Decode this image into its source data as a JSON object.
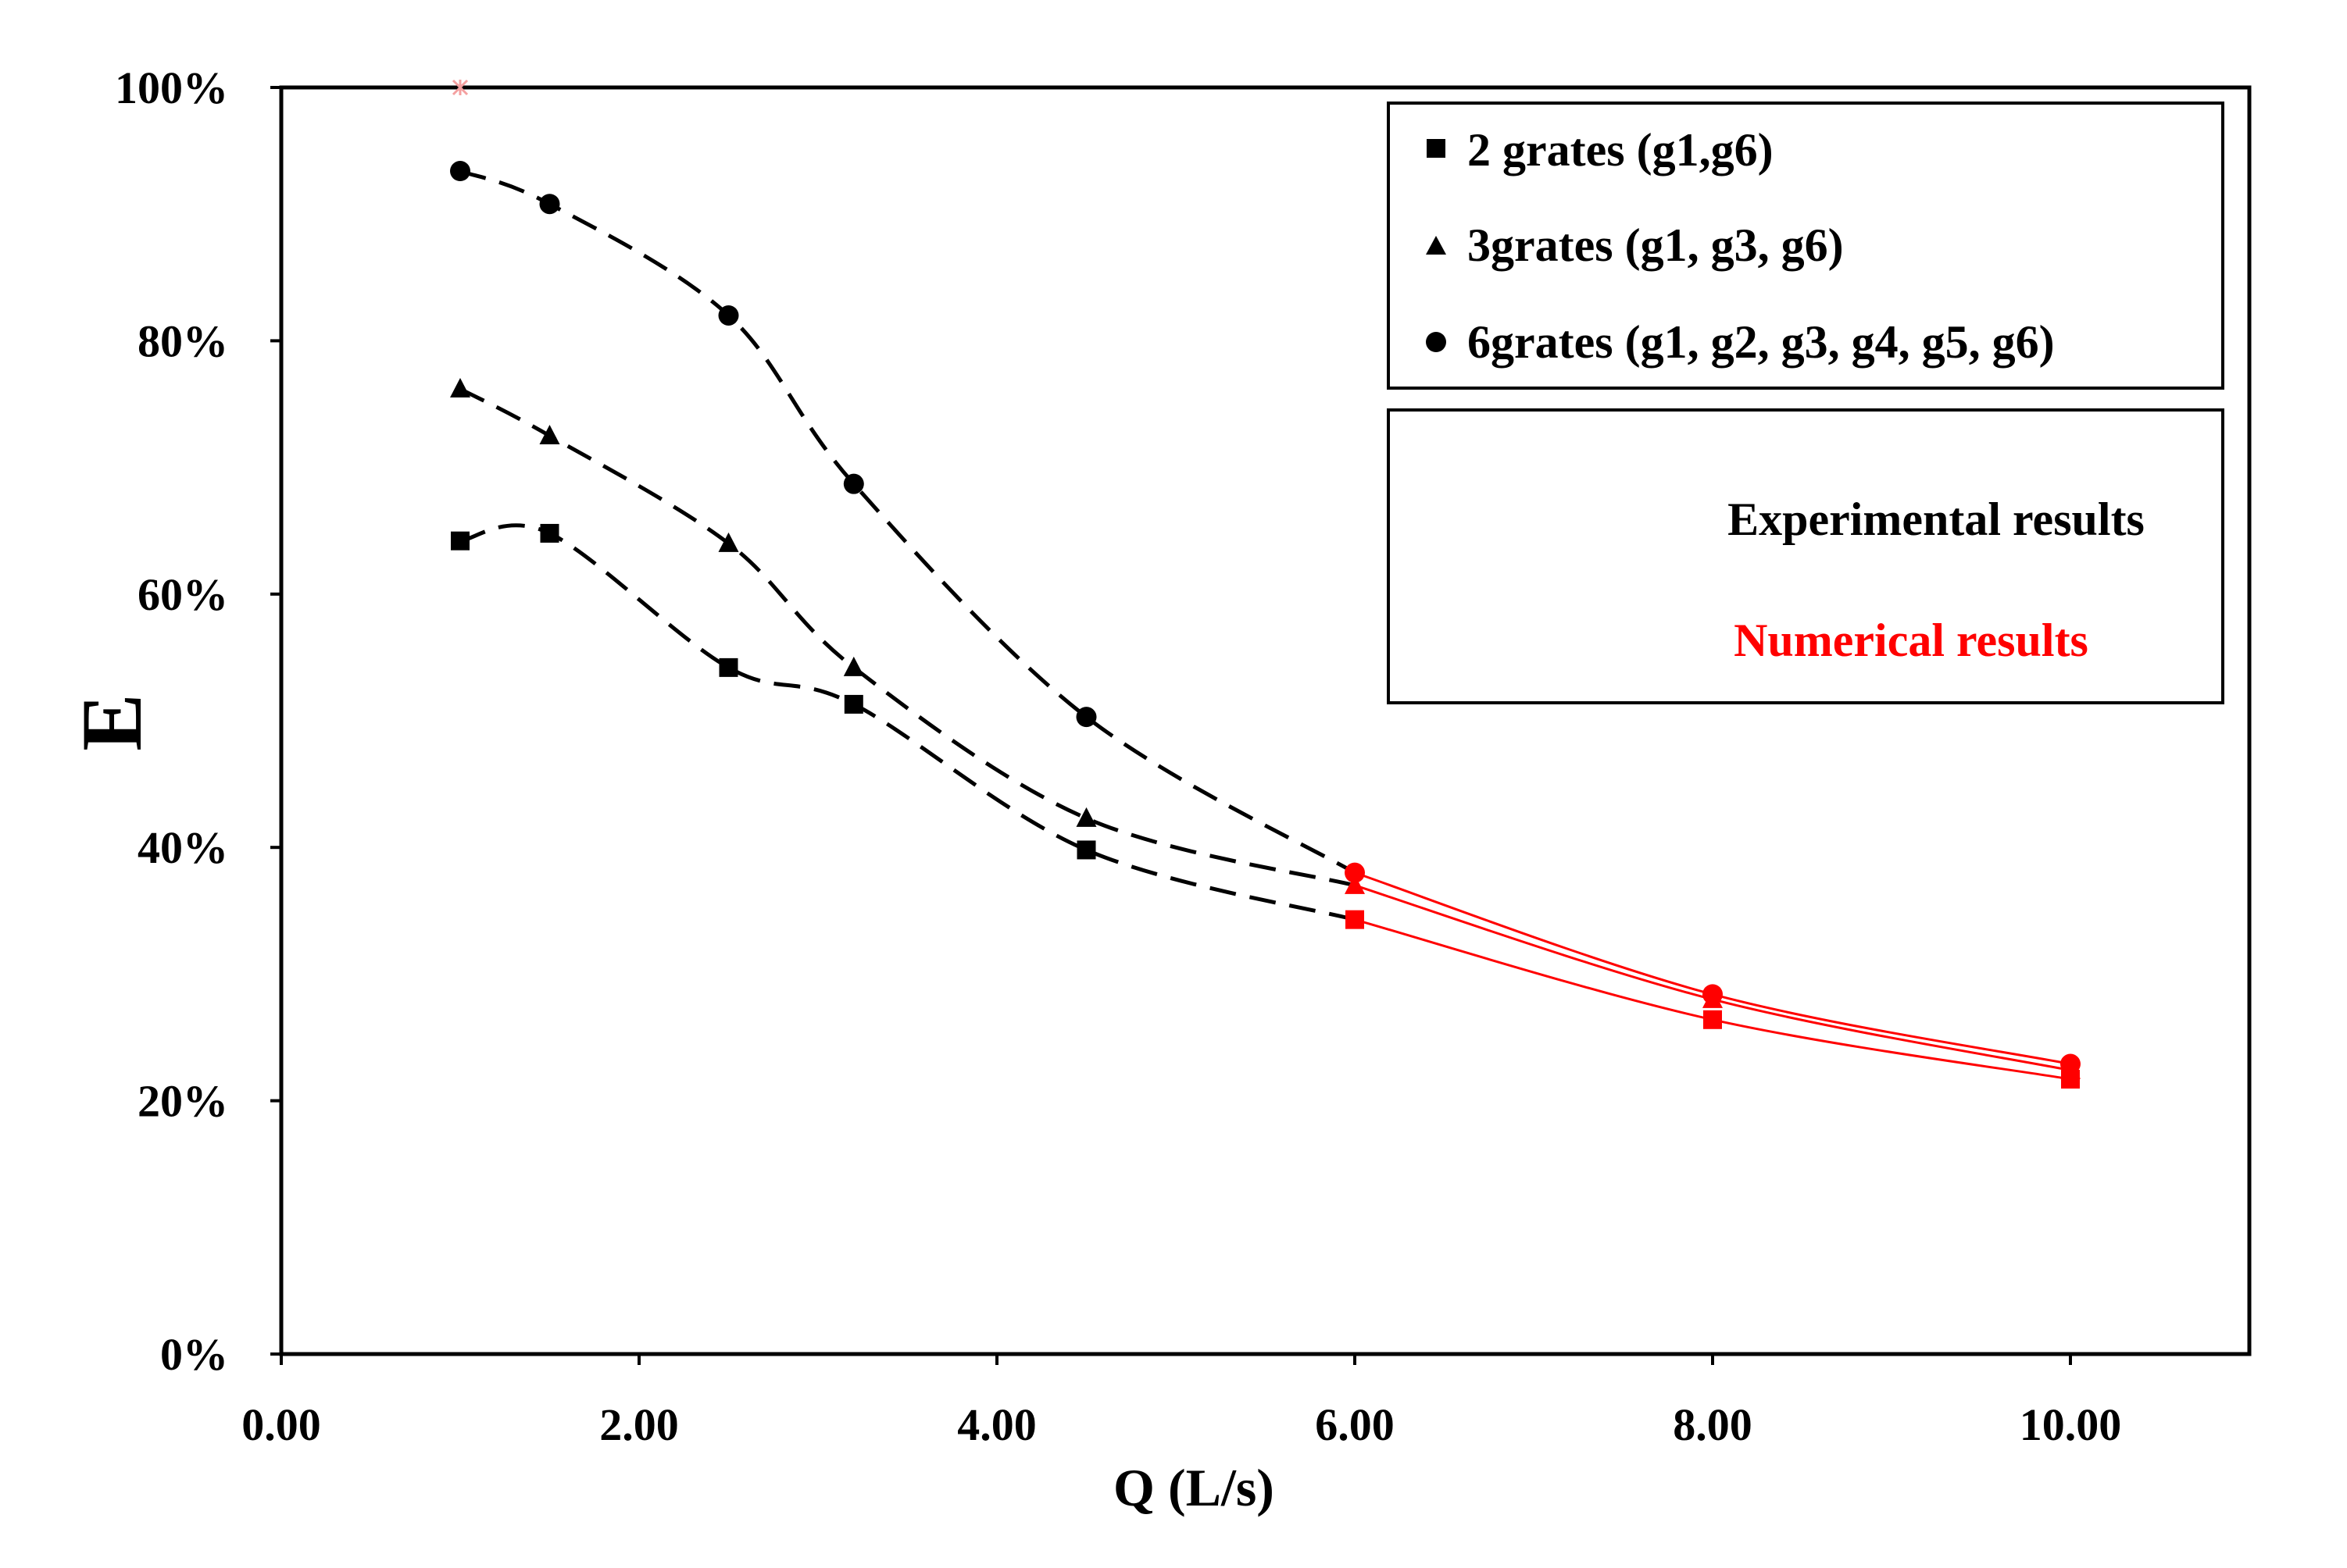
{
  "chart_data": {
    "type": "line",
    "title": "",
    "xlabel": "Q (L/s)",
    "ylabel": "E",
    "xlim": [
      0,
      11
    ],
    "ylim": [
      0,
      100
    ],
    "x_ticks": [
      0,
      2,
      4,
      6,
      8,
      10
    ],
    "x_tick_labels": [
      "0.00",
      "2.00",
      "4.00",
      "6.00",
      "8.00",
      "10.00"
    ],
    "y_ticks": [
      0,
      20,
      40,
      60,
      80,
      100
    ],
    "y_tick_labels": [
      "0%",
      "20%",
      "40%",
      "60%",
      "80%",
      "100%"
    ],
    "grid": false,
    "legend_position": "top-right",
    "series": [
      {
        "name": "2 grates (g1,g6)",
        "marker": "square",
        "experimental": {
          "x": [
            1.0,
            1.5,
            2.5,
            3.2,
            4.5,
            6.0
          ],
          "y": [
            64.2,
            64.8,
            54.2,
            51.3,
            39.8,
            34.3
          ]
        },
        "numerical": {
          "x": [
            6.0,
            8.0,
            10.0
          ],
          "y": [
            34.3,
            26.4,
            21.7
          ]
        }
      },
      {
        "name": "3grates (g1, g3, g6)",
        "marker": "triangle",
        "experimental": {
          "x": [
            1.0,
            1.5,
            2.5,
            3.2,
            4.5,
            6.0
          ],
          "y": [
            76.2,
            72.5,
            64.0,
            54.2,
            42.3,
            37.0
          ]
        },
        "numerical": {
          "x": [
            6.0,
            8.0,
            10.0
          ],
          "y": [
            37.0,
            28.0,
            22.4
          ]
        }
      },
      {
        "name": "6grates (g1, g2, g3, g4, g5, g6)",
        "marker": "circle",
        "experimental": {
          "x": [
            1.0,
            1.5,
            2.5,
            3.2,
            4.5,
            6.0
          ],
          "y": [
            93.4,
            90.8,
            82.0,
            68.7,
            50.3,
            38.0
          ]
        },
        "numerical": {
          "x": [
            6.0,
            8.0,
            10.0
          ],
          "y": [
            38.0,
            28.4,
            22.9
          ]
        }
      }
    ],
    "outlier_point": {
      "x": 1.0,
      "y": 100.0,
      "color": "#f4a0a0"
    },
    "annotations": {
      "experimental_label": "Experimental results",
      "numerical_label": "Numerical results"
    },
    "colors": {
      "experimental": "#000000",
      "numerical": "#ff0000"
    }
  }
}
